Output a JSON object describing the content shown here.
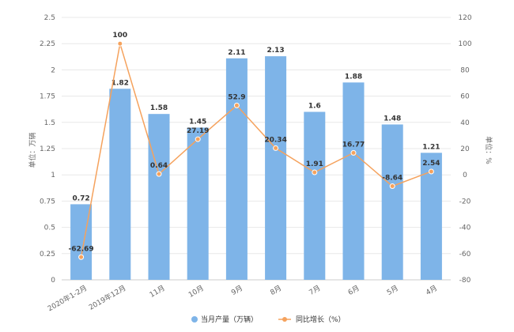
{
  "chart_data": {
    "type": "bar",
    "categories": [
      "2020年1-2月",
      "2019年12月",
      "11月",
      "10月",
      "9月",
      "8月",
      "7月",
      "6月",
      "5月",
      "4月"
    ],
    "series": [
      {
        "name": "当月产量（万辆）",
        "type": "bar",
        "axis": "left",
        "color": "#7eb4e8",
        "values": [
          0.72,
          1.82,
          1.58,
          1.45,
          2.11,
          2.13,
          1.6,
          1.88,
          1.48,
          1.21
        ],
        "labels": [
          "0.72",
          "1.82",
          "1.58",
          "1.45",
          "2.11",
          "2.13",
          "1.6",
          "1.88",
          "1.48",
          "1.21"
        ]
      },
      {
        "name": "同比增长（%）",
        "type": "line",
        "axis": "right",
        "color": "#f5a25d",
        "values": [
          -62.69,
          100,
          0.64,
          27.19,
          52.9,
          20.34,
          1.91,
          16.77,
          -8.64,
          2.54
        ],
        "labels": [
          "-62.69",
          "100",
          "0.64",
          "27.19",
          "52.9",
          "20.34",
          "1.91",
          "16.77",
          "-8.64",
          "2.54"
        ]
      }
    ],
    "ylabel": "单位：万辆",
    "y2label": "单位：%",
    "ylim": [
      0,
      2.5
    ],
    "y2lim": [
      -80,
      120
    ],
    "yticks": [
      "0",
      "0.25",
      "0.5",
      "0.75",
      "1",
      "1.25",
      "1.5",
      "1.75",
      "2",
      "2.25",
      "2.5"
    ],
    "y2ticks": [
      "-80",
      "-60",
      "-40",
      "-20",
      "0",
      "20",
      "40",
      "60",
      "80",
      "100",
      "120"
    ],
    "grid": true,
    "legend_position": "bottom-center"
  }
}
